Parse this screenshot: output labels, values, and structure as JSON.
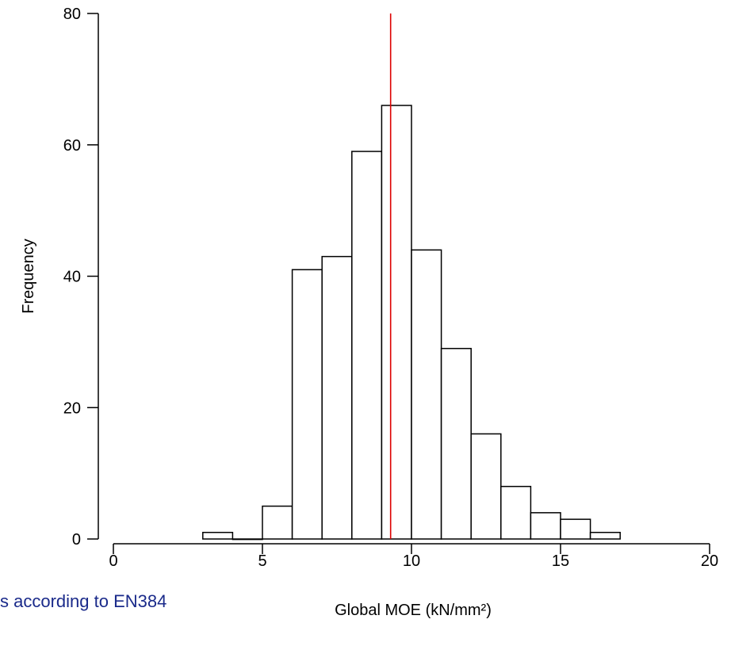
{
  "chart_data": {
    "type": "bar",
    "subtype": "histogram",
    "xlabel": "Global MOE (kN/mm²)",
    "ylabel": "Frequency",
    "xlim": [
      0,
      20
    ],
    "ylim": [
      0,
      80
    ],
    "x_ticks": [
      "0",
      "5",
      "10",
      "15",
      "20"
    ],
    "y_ticks": [
      "0",
      "20",
      "40",
      "60",
      "80"
    ],
    "bins": [
      {
        "from": 3,
        "to": 4,
        "count": 1
      },
      {
        "from": 4,
        "to": 5,
        "count": 0
      },
      {
        "from": 5,
        "to": 6,
        "count": 5
      },
      {
        "from": 6,
        "to": 7,
        "count": 41
      },
      {
        "from": 7,
        "to": 8,
        "count": 43
      },
      {
        "from": 8,
        "to": 9,
        "count": 59
      },
      {
        "from": 9,
        "to": 10,
        "count": 66
      },
      {
        "from": 10,
        "to": 11,
        "count": 44
      },
      {
        "from": 11,
        "to": 12,
        "count": 29
      },
      {
        "from": 12,
        "to": 13,
        "count": 16
      },
      {
        "from": 13,
        "to": 14,
        "count": 8
      },
      {
        "from": 14,
        "to": 15,
        "count": 4
      },
      {
        "from": 15,
        "to": 16,
        "count": 3
      },
      {
        "from": 16,
        "to": 17,
        "count": 1
      }
    ],
    "reference_line": {
      "x": 9.3,
      "color": "#dd0000"
    },
    "bar_fill": "#ffffff",
    "bar_stroke": "#000000",
    "grid": false
  },
  "caption": "s according to EN384"
}
